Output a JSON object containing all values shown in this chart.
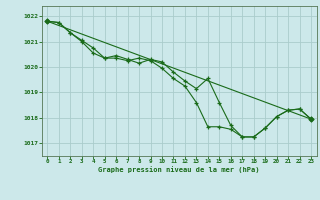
{
  "title": "Graphe pression niveau de la mer (hPa)",
  "bg_color": "#cce8ea",
  "grid_color": "#aacccc",
  "line_color": "#1a6b1a",
  "spine_color": "#557755",
  "xlim": [
    -0.5,
    23.5
  ],
  "ylim": [
    1016.5,
    1022.4
  ],
  "yticks": [
    1017,
    1018,
    1019,
    1020,
    1021,
    1022
  ],
  "xticks": [
    0,
    1,
    2,
    3,
    4,
    5,
    6,
    7,
    8,
    9,
    10,
    11,
    12,
    13,
    14,
    15,
    16,
    17,
    18,
    19,
    20,
    21,
    22,
    23
  ],
  "series1_x": [
    0,
    1,
    2,
    3,
    4,
    5,
    6,
    7,
    8,
    9,
    10,
    11,
    12,
    13,
    14,
    15,
    16,
    17,
    18,
    19,
    20,
    21,
    22,
    23
  ],
  "series1_y": [
    1021.8,
    1021.75,
    1021.35,
    1021.0,
    1020.55,
    1020.35,
    1020.35,
    1020.25,
    1020.35,
    1020.25,
    1019.95,
    1019.55,
    1019.25,
    1018.6,
    1017.65,
    1017.65,
    1017.55,
    1017.25,
    1017.25,
    1017.6,
    1018.05,
    1018.3,
    1018.35,
    1017.95
  ],
  "series2_x": [
    0,
    1,
    2,
    3,
    4,
    5,
    6,
    7,
    8,
    9,
    10,
    11,
    12,
    13,
    14,
    15,
    16,
    17,
    18,
    19,
    20,
    21,
    22,
    23
  ],
  "series2_y": [
    1021.8,
    1021.75,
    1021.35,
    1021.05,
    1020.75,
    1020.35,
    1020.45,
    1020.3,
    1020.15,
    1020.3,
    1020.2,
    1019.8,
    1019.45,
    1019.15,
    1019.55,
    1018.6,
    1017.7,
    1017.25,
    1017.25,
    1017.6,
    1018.05,
    1018.3,
    1018.35,
    1017.95
  ],
  "series3_x": [
    0,
    23
  ],
  "series3_y": [
    1021.8,
    1017.95
  ]
}
